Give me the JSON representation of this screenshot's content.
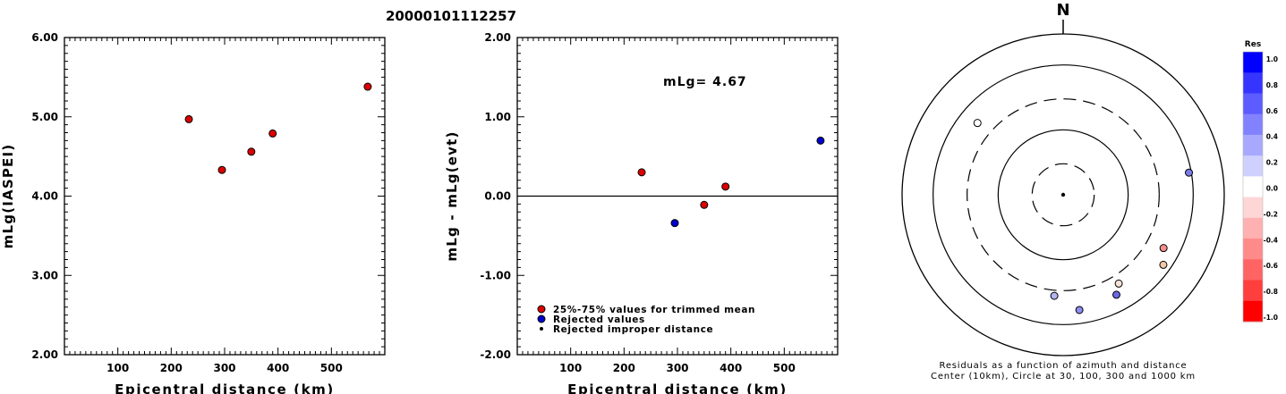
{
  "page": {
    "title": "20000101112257"
  },
  "chart_data": [
    {
      "type": "scatter",
      "xlabel": "Epicentral distance (km)",
      "ylabel": "mLg(IASPEI)",
      "xlim": [
        0,
        600
      ],
      "ylim": [
        2.0,
        6.0
      ],
      "x_ticks": [
        "100",
        "200",
        "300",
        "400",
        "500"
      ],
      "y_ticks": [
        "2.00",
        "3.00",
        "4.00",
        "5.00",
        "6.00"
      ],
      "series": [
        {
          "color": "#dd0000",
          "points": [
            [
              233,
              4.97
            ],
            [
              295,
              4.33
            ],
            [
              350,
              4.56
            ],
            [
              390,
              4.79
            ],
            [
              568,
              5.38
            ]
          ]
        }
      ]
    },
    {
      "type": "scatter",
      "xlabel": "Epicentral distance (km)",
      "ylabel": "mLg - mLg(evt)",
      "xlim": [
        0,
        600
      ],
      "ylim": [
        -2.0,
        2.0
      ],
      "x_ticks": [
        "100",
        "200",
        "300",
        "400",
        "500"
      ],
      "y_ticks": [
        "-2.00",
        "-1.00",
        "0.00",
        "1.00",
        "2.00"
      ],
      "annotation": "mLg= 4.67",
      "zero_line": true,
      "legend": [
        {
          "label": "25%-75% values for trimmed mean",
          "color": "#dd0000",
          "marker": "circle"
        },
        {
          "label": "Rejected values",
          "color": "#0000cc",
          "marker": "circle"
        },
        {
          "label": "Rejected improper distance",
          "color": "#000000",
          "marker": "dot"
        }
      ],
      "series": [
        {
          "color": "#dd0000",
          "points": [
            [
              233,
              0.3
            ],
            [
              350,
              -0.11
            ],
            [
              390,
              0.12
            ]
          ]
        },
        {
          "color": "#0000cc",
          "points": [
            [
              295,
              -0.34
            ],
            [
              568,
              0.7
            ]
          ]
        }
      ]
    },
    {
      "type": "scatter",
      "north_label": "N",
      "caption": [
        "Residuals as a function of azimuth and distance",
        "Center (10km), Circle at 30, 100, 300 and 1000 km"
      ],
      "rings_km": [
        30,
        100,
        300,
        1000
      ],
      "points": [
        {
          "azimuth": 310,
          "distance_km": 525,
          "color": "#ffffff"
        },
        {
          "azimuth": 80,
          "distance_km": 920,
          "color": "#7b7bea"
        },
        {
          "azimuth": 118,
          "distance_km": 560,
          "color": "#f09090"
        },
        {
          "azimuth": 125,
          "distance_km": 760,
          "color": "#f5c6a8"
        },
        {
          "azimuth": 148,
          "distance_km": 410,
          "color": "#f8e2d6"
        },
        {
          "azimuth": 152,
          "distance_km": 555,
          "color": "#6a6ae6"
        },
        {
          "azimuth": 172,
          "distance_km": 620,
          "color": "#8d8df0"
        },
        {
          "azimuth": 185,
          "distance_km": 365,
          "color": "#b3b3f2"
        }
      ],
      "colorbar": {
        "title": "Res",
        "labels": [
          "1.0",
          "0.8",
          "0.6",
          "0.4",
          "0.2",
          "0.0",
          "-0.2",
          "-0.4",
          "-0.6",
          "-0.8",
          "-1.0"
        ],
        "colors": [
          "#0000ff",
          "#3535ff",
          "#5c5cff",
          "#8282ff",
          "#a8a8ff",
          "#d0d0ff",
          "#ffffff",
          "#ffd6d6",
          "#ffb0b0",
          "#ff8a8a",
          "#ff6464",
          "#ff3e3e",
          "#ff0000"
        ]
      }
    }
  ]
}
